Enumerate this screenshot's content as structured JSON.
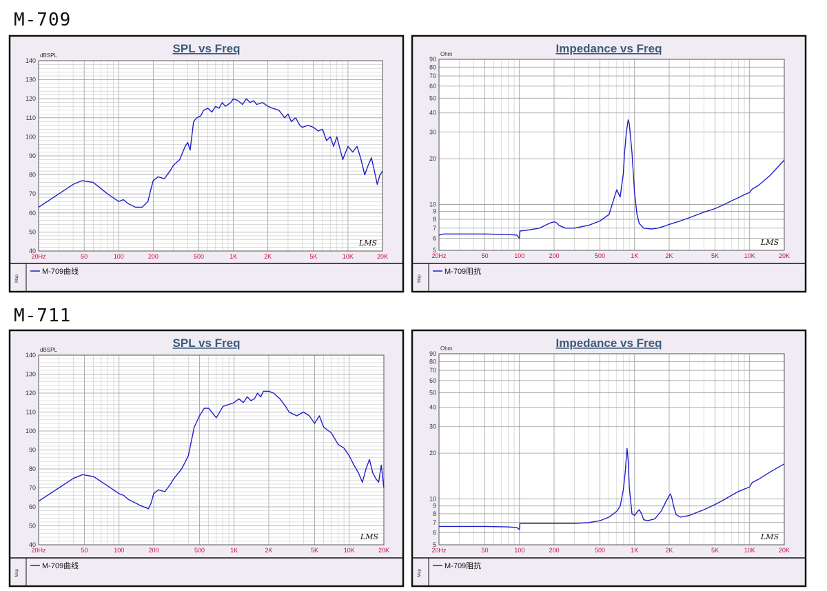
{
  "sections": [
    {
      "title": "M-709"
    },
    {
      "title": "M-711"
    }
  ],
  "chart_data": [
    {
      "type": "line",
      "title": "SPL vs Freq",
      "ylabel": "dBSPL",
      "xscale": "log",
      "xlim": [
        20,
        20000
      ],
      "ylim": [
        40,
        140
      ],
      "xticks": [
        "20Hz",
        "50",
        "100",
        "200",
        "500",
        "1K",
        "2K",
        "5K",
        "10K",
        "20K"
      ],
      "yticks": [
        "140",
        "130",
        "120",
        "110",
        "100",
        "90",
        "80",
        "70",
        "60",
        "50",
        "40"
      ],
      "legend": "M-709曲线",
      "legend_side": "Map",
      "watermark": "LMS",
      "grid": true,
      "series": [
        {
          "name": "M-709曲线",
          "x": [
            20,
            30,
            40,
            48,
            60,
            80,
            100,
            110,
            120,
            140,
            160,
            180,
            190,
            200,
            220,
            250,
            280,
            300,
            340,
            380,
            400,
            420,
            450,
            480,
            520,
            550,
            600,
            650,
            700,
            750,
            800,
            850,
            900,
            950,
            1000,
            1100,
            1200,
            1300,
            1400,
            1500,
            1600,
            1800,
            2000,
            2200,
            2500,
            2800,
            3000,
            3200,
            3500,
            3800,
            4000,
            4500,
            5000,
            5500,
            6000,
            6500,
            7000,
            7500,
            8000,
            9000,
            10000,
            11000,
            12000,
            13000,
            14000,
            15000,
            16000,
            17000,
            18000,
            19000,
            20000
          ],
          "y": [
            63,
            70,
            75,
            77,
            76,
            70,
            66,
            67,
            65,
            63,
            63,
            66,
            72,
            77,
            79,
            78,
            82,
            85,
            88,
            95,
            97,
            93,
            108,
            110,
            111,
            114,
            115,
            113,
            116,
            115,
            118,
            116,
            117,
            118,
            120,
            119,
            117,
            120,
            118,
            119,
            117,
            118,
            116,
            115,
            114,
            110,
            112,
            108,
            110,
            106,
            105,
            106,
            105,
            103,
            104,
            98,
            100,
            95,
            100,
            88,
            95,
            92,
            95,
            88,
            80,
            85,
            89,
            82,
            75,
            80,
            82
          ]
        }
      ]
    },
    {
      "type": "line",
      "title": "Impedance vs Freq",
      "ylabel": "Ohm",
      "xscale": "log",
      "yscale": "log",
      "xlim": [
        20,
        20000
      ],
      "ylim": [
        5,
        90
      ],
      "xticks": [
        "20Hz",
        "50",
        "100",
        "200",
        "500",
        "1K",
        "2K",
        "5K",
        "10K",
        "20K"
      ],
      "yticks": [
        "90",
        "80",
        "70",
        "60",
        "50",
        "40",
        "30",
        "20",
        "10",
        "9",
        "8",
        "7",
        "6",
        "5"
      ],
      "legend": "M-709阻抗",
      "legend_side": "Map",
      "watermark": "LMS",
      "grid": true,
      "series": [
        {
          "name": "M-709阻抗",
          "x": [
            20,
            22,
            25,
            50,
            80,
            95,
            100,
            101,
            120,
            150,
            180,
            200,
            210,
            220,
            250,
            300,
            400,
            500,
            600,
            700,
            750,
            800,
            820,
            850,
            880,
            900,
            950,
            1000,
            1050,
            1100,
            1200,
            1400,
            1600,
            1800,
            2000,
            2500,
            3000,
            4000,
            5000,
            6000,
            7000,
            8000,
            9000,
            10000,
            10500,
            12000,
            15000,
            20000
          ],
          "y": [
            6.3,
            6.4,
            6.4,
            6.4,
            6.35,
            6.3,
            6.0,
            6.7,
            6.8,
            7.0,
            7.5,
            7.7,
            7.6,
            7.3,
            7.0,
            7.0,
            7.3,
            7.8,
            8.6,
            12.5,
            11.2,
            16,
            22,
            30,
            36,
            34,
            22,
            12,
            8.6,
            7.5,
            7.0,
            6.9,
            7.0,
            7.2,
            7.4,
            7.8,
            8.2,
            8.9,
            9.4,
            10.0,
            10.6,
            11.1,
            11.6,
            12.0,
            12.6,
            13.4,
            15.5,
            19.6
          ]
        }
      ]
    },
    {
      "type": "line",
      "title": "SPL vs Freq",
      "ylabel": "dBSPL",
      "xscale": "log",
      "xlim": [
        20,
        20000
      ],
      "ylim": [
        40,
        140
      ],
      "xticks": [
        "20Hz",
        "50",
        "100",
        "200",
        "500",
        "1K",
        "2K",
        "5K",
        "10K",
        "20K"
      ],
      "yticks": [
        "140",
        "130",
        "120",
        "110",
        "100",
        "90",
        "80",
        "70",
        "60",
        "50",
        "40"
      ],
      "legend": "M-709曲线",
      "legend_side": "Map",
      "watermark": "LMS",
      "grid": true,
      "series": [
        {
          "name": "M-709曲线",
          "x": [
            20,
            30,
            40,
            48,
            60,
            80,
            100,
            110,
            120,
            150,
            180,
            190,
            200,
            220,
            250,
            280,
            300,
            350,
            400,
            450,
            500,
            550,
            600,
            700,
            800,
            900,
            1000,
            1100,
            1200,
            1300,
            1400,
            1500,
            1600,
            1700,
            1800,
            2000,
            2200,
            2500,
            2800,
            3000,
            3500,
            4000,
            4500,
            5000,
            5500,
            6000,
            7000,
            8000,
            9000,
            10000,
            11000,
            12000,
            13000,
            14000,
            15000,
            16000,
            17000,
            18000,
            19000,
            20000
          ],
          "y": [
            63,
            70,
            75,
            77,
            76,
            71,
            67,
            66,
            64,
            61,
            59,
            62,
            67,
            69,
            68,
            72,
            75,
            80,
            87,
            102,
            108,
            112,
            112,
            107,
            113,
            114,
            115,
            117,
            115,
            118,
            116,
            117,
            120,
            118,
            121,
            121,
            120,
            117,
            113,
            110,
            108,
            110,
            108,
            104,
            108,
            102,
            99,
            93,
            91,
            87,
            82,
            78,
            73,
            80,
            85,
            78,
            75,
            73,
            82,
            70
          ]
        }
      ]
    },
    {
      "type": "line",
      "title": "Impedance vs Freq",
      "ylabel": "Ohm",
      "xscale": "log",
      "yscale": "log",
      "xlim": [
        20,
        20000
      ],
      "ylim": [
        5,
        90
      ],
      "xticks": [
        "20Hz",
        "50",
        "100",
        "200",
        "500",
        "1K",
        "2K",
        "5K",
        "10K",
        "20K"
      ],
      "yticks": [
        "90",
        "80",
        "70",
        "60",
        "50",
        "40",
        "30",
        "20",
        "10",
        "9",
        "8",
        "7",
        "6",
        "5"
      ],
      "legend": "M-709阻抗",
      "legend_side": "Map",
      "watermark": "LMS",
      "grid": true,
      "series": [
        {
          "name": "M-709阻抗",
          "x": [
            20,
            50,
            80,
            95,
            100,
            101,
            150,
            200,
            300,
            400,
            500,
            600,
            700,
            750,
            800,
            830,
            860,
            880,
            900,
            950,
            1000,
            1050,
            1100,
            1150,
            1200,
            1300,
            1500,
            1700,
            1900,
            2000,
            2050,
            2100,
            2200,
            2300,
            2500,
            3000,
            4000,
            5000,
            6000,
            7000,
            8000,
            10000,
            10500,
            12000,
            15000,
            20000
          ],
          "y": [
            6.6,
            6.6,
            6.55,
            6.5,
            6.3,
            6.9,
            6.9,
            6.9,
            6.9,
            7.0,
            7.2,
            7.6,
            8.3,
            9.0,
            11.5,
            15,
            21.5,
            18,
            12,
            8.0,
            7.8,
            8.2,
            8.5,
            8.0,
            7.3,
            7.2,
            7.4,
            8.3,
            9.8,
            10.5,
            10.8,
            10.3,
            8.8,
            7.9,
            7.6,
            7.8,
            8.5,
            9.2,
            9.9,
            10.6,
            11.2,
            12.0,
            12.8,
            13.5,
            15.0,
            17.0
          ]
        }
      ]
    }
  ]
}
